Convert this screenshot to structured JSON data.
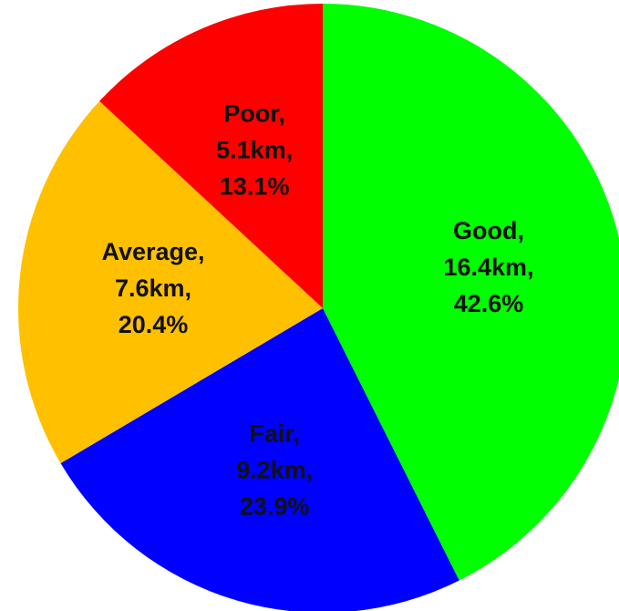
{
  "chart_data": {
    "type": "pie",
    "categories": [
      "Good,",
      "Fair,",
      "Average,",
      "Poor,"
    ],
    "values": [
      42.6,
      23.9,
      20.4,
      13.1
    ],
    "value_labels": [
      "42.6%",
      "23.9%",
      "20.4%",
      "13.1%"
    ],
    "distances": [
      16.4,
      9.2,
      7.6,
      5.1
    ],
    "distance_labels": [
      "16.4km,",
      "9.2km,",
      "7.6km,",
      "5.1km,"
    ],
    "colors": [
      "#00ff00",
      "#0000ff",
      "#ffc000",
      "#ff0000"
    ]
  }
}
